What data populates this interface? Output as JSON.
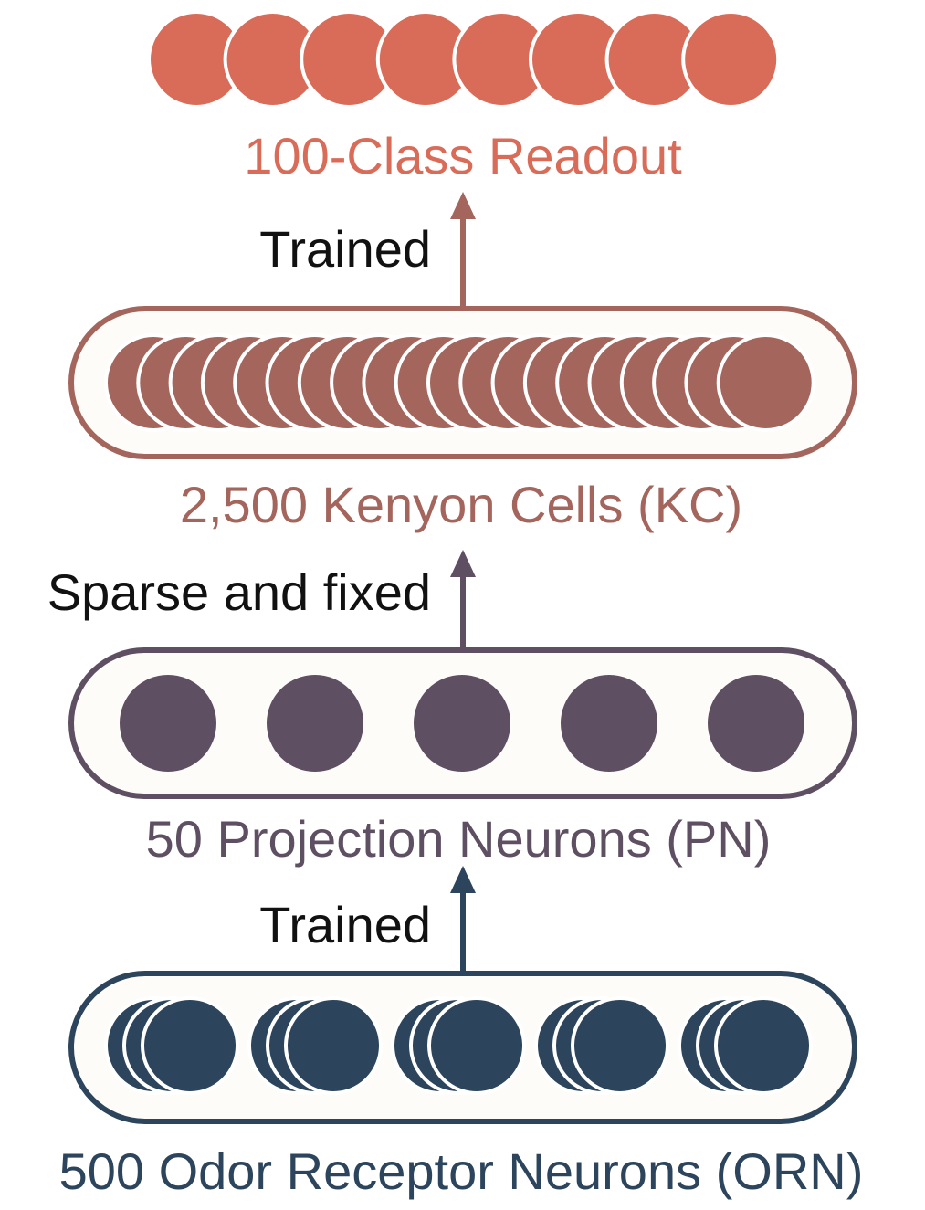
{
  "colors": {
    "readout": "#D86C59",
    "kc": "#A3655C",
    "pn": "#5E4F62",
    "orn": "#2C445C",
    "text": "#111111",
    "box_fill": "#FDFCF8"
  },
  "layers": {
    "readout": {
      "label": "100-Class Readout",
      "circles": 8
    },
    "kc": {
      "label": "2,500 Kenyon Cells (KC)",
      "circles": 20
    },
    "pn": {
      "label": "50 Projection Neurons (PN)",
      "circles": 5
    },
    "orn": {
      "label": "500 Odor Receptor Neurons (ORN)",
      "groups": 5,
      "per_group": 3
    }
  },
  "connections": {
    "kc_to_readout": "Trained",
    "pn_to_kc": "Sparse and fixed",
    "orn_to_pn": "Trained"
  }
}
